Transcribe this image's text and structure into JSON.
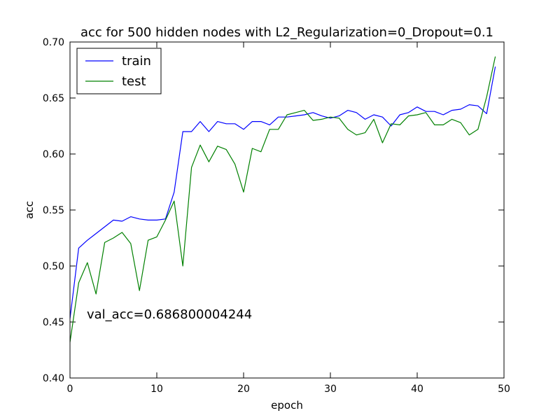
{
  "chart_data": {
    "type": "line",
    "title": "acc for 500 hidden nodes with L2_Regularization=0_Dropout=0.1",
    "xlabel": "epoch",
    "ylabel": "acc",
    "xlim": [
      0,
      50
    ],
    "ylim": [
      0.4,
      0.7
    ],
    "x_ticks": [
      0,
      10,
      20,
      30,
      40,
      50
    ],
    "x_tick_labels": [
      "0",
      "10",
      "20",
      "30",
      "40",
      "50"
    ],
    "y_ticks": [
      0.4,
      0.45,
      0.5,
      0.55,
      0.6,
      0.65,
      0.7
    ],
    "y_tick_labels": [
      "0.40",
      "0.45",
      "0.50",
      "0.55",
      "0.60",
      "0.65",
      "0.70"
    ],
    "grid": false,
    "legend_position": "top-left",
    "annotation": "val_acc=0.686800004244",
    "x": [
      0,
      1,
      2,
      3,
      4,
      5,
      6,
      7,
      8,
      9,
      10,
      11,
      12,
      13,
      14,
      15,
      16,
      17,
      18,
      19,
      20,
      21,
      22,
      23,
      24,
      25,
      26,
      27,
      28,
      29,
      30,
      31,
      32,
      33,
      34,
      35,
      36,
      37,
      38,
      39,
      40,
      41,
      42,
      43,
      44,
      45,
      46,
      47,
      48,
      49
    ],
    "series": [
      {
        "name": "train",
        "color": "#0000ff",
        "values": [
          0.453,
          0.516,
          0.523,
          0.529,
          0.535,
          0.541,
          0.54,
          0.544,
          0.542,
          0.541,
          0.541,
          0.542,
          0.566,
          0.62,
          0.62,
          0.629,
          0.62,
          0.629,
          0.627,
          0.627,
          0.622,
          0.629,
          0.629,
          0.626,
          0.633,
          0.633,
          0.634,
          0.635,
          0.637,
          0.634,
          0.632,
          0.634,
          0.639,
          0.637,
          0.631,
          0.635,
          0.633,
          0.625,
          0.635,
          0.637,
          0.642,
          0.638,
          0.638,
          0.635,
          0.639,
          0.64,
          0.644,
          0.643,
          0.636,
          0.678
        ]
      },
      {
        "name": "test",
        "color": "#008000",
        "values": [
          0.432,
          0.485,
          0.503,
          0.475,
          0.521,
          0.525,
          0.53,
          0.52,
          0.478,
          0.523,
          0.526,
          0.541,
          0.558,
          0.5,
          0.588,
          0.608,
          0.593,
          0.607,
          0.604,
          0.591,
          0.566,
          0.605,
          0.602,
          0.622,
          0.622,
          0.635,
          0.637,
          0.639,
          0.63,
          0.631,
          0.633,
          0.632,
          0.622,
          0.617,
          0.619,
          0.631,
          0.61,
          0.627,
          0.626,
          0.634,
          0.635,
          0.637,
          0.626,
          0.626,
          0.631,
          0.628,
          0.617,
          0.622,
          0.651,
          0.687
        ]
      }
    ]
  }
}
